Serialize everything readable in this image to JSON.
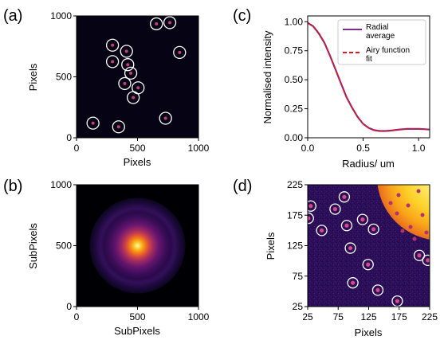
{
  "chart_data": [
    {
      "panel": "(a)",
      "type": "heatmap",
      "xlabel": "Pixels",
      "ylabel": "Pixels",
      "xlim": [
        0,
        1000
      ],
      "ylim": [
        0,
        1000
      ],
      "xticks": [
        "0",
        "500",
        "1000"
      ],
      "yticks": [
        "0",
        "500",
        "1000"
      ],
      "colormap": "inferno",
      "circled_particles": [
        {
          "x": 655,
          "y": 935
        },
        {
          "x": 765,
          "y": 945
        },
        {
          "x": 295,
          "y": 760
        },
        {
          "x": 410,
          "y": 710
        },
        {
          "x": 845,
          "y": 700
        },
        {
          "x": 295,
          "y": 625
        },
        {
          "x": 420,
          "y": 600
        },
        {
          "x": 445,
          "y": 530
        },
        {
          "x": 395,
          "y": 445
        },
        {
          "x": 505,
          "y": 410
        },
        {
          "x": 465,
          "y": 330
        },
        {
          "x": 730,
          "y": 160
        },
        {
          "x": 135,
          "y": 120
        },
        {
          "x": 345,
          "y": 90
        }
      ]
    },
    {
      "panel": "(b)",
      "type": "heatmap",
      "xlabel": "SubPixels",
      "ylabel": "SubPixels",
      "xlim": [
        0,
        1000
      ],
      "ylim": [
        0,
        1000
      ],
      "xticks": [
        "0",
        "500",
        "1000"
      ],
      "yticks": [
        "0",
        "500",
        "1000"
      ],
      "colormap": "inferno",
      "peak": {
        "x": 500,
        "y": 500
      }
    },
    {
      "panel": "(c)",
      "type": "line",
      "xlabel": "Radius/ um",
      "ylabel": "Normalised intensity",
      "xlim": [
        0,
        1.1
      ],
      "ylim": [
        0,
        1.05
      ],
      "xticks": [
        "0.0",
        "0.5",
        "1.0"
      ],
      "yticks": [
        "0.00",
        "0.25",
        "0.50",
        "0.75",
        "1.00"
      ],
      "legend_position": "top-right",
      "series": [
        {
          "name": "Radial average",
          "color": "#7b2d8b",
          "style": "solid",
          "x": [
            0,
            0.05,
            0.1,
            0.15,
            0.2,
            0.25,
            0.3,
            0.35,
            0.4,
            0.45,
            0.5,
            0.55,
            0.6,
            0.65,
            0.7,
            0.75,
            0.8,
            0.85,
            0.9,
            0.95,
            1.0,
            1.05,
            1.1
          ],
          "y": [
            0.99,
            0.96,
            0.9,
            0.82,
            0.71,
            0.59,
            0.47,
            0.35,
            0.26,
            0.18,
            0.12,
            0.085,
            0.065,
            0.058,
            0.058,
            0.062,
            0.068,
            0.073,
            0.076,
            0.077,
            0.076,
            0.074,
            0.071
          ]
        },
        {
          "name": "Airy function fit",
          "color": "#e8141c",
          "style": "dashed",
          "x": [
            0,
            0.05,
            0.1,
            0.15,
            0.2,
            0.25,
            0.3,
            0.35,
            0.4,
            0.45,
            0.5,
            0.55,
            0.6,
            0.65,
            0.7,
            0.75,
            0.8,
            0.85,
            0.9,
            0.95,
            1.0,
            1.05,
            1.1
          ],
          "y": [
            0.99,
            0.96,
            0.9,
            0.82,
            0.71,
            0.59,
            0.47,
            0.35,
            0.26,
            0.18,
            0.12,
            0.085,
            0.065,
            0.058,
            0.058,
            0.062,
            0.068,
            0.073,
            0.076,
            0.077,
            0.076,
            0.074,
            0.071
          ]
        }
      ]
    },
    {
      "panel": "(d)",
      "type": "heatmap",
      "xlabel": "Pixels",
      "ylabel": "Pixels",
      "xlim": [
        25,
        225
      ],
      "ylim": [
        25,
        225
      ],
      "xticks": [
        "25",
        "75",
        "125",
        "175",
        "225"
      ],
      "yticks": [
        "25",
        "75",
        "125",
        "175",
        "225"
      ],
      "colormap": "inferno",
      "circled_particles": [
        {
          "x": 85,
          "y": 205
        },
        {
          "x": 30,
          "y": 190
        },
        {
          "x": 70,
          "y": 185
        },
        {
          "x": 26,
          "y": 170
        },
        {
          "x": 115,
          "y": 168
        },
        {
          "x": 48,
          "y": 150
        },
        {
          "x": 89,
          "y": 158
        },
        {
          "x": 133,
          "y": 152
        },
        {
          "x": 95,
          "y": 121
        },
        {
          "x": 208,
          "y": 109
        },
        {
          "x": 222,
          "y": 101
        },
        {
          "x": 124,
          "y": 94
        },
        {
          "x": 99,
          "y": 64
        },
        {
          "x": 140,
          "y": 52
        },
        {
          "x": 172,
          "y": 34
        }
      ]
    }
  ]
}
